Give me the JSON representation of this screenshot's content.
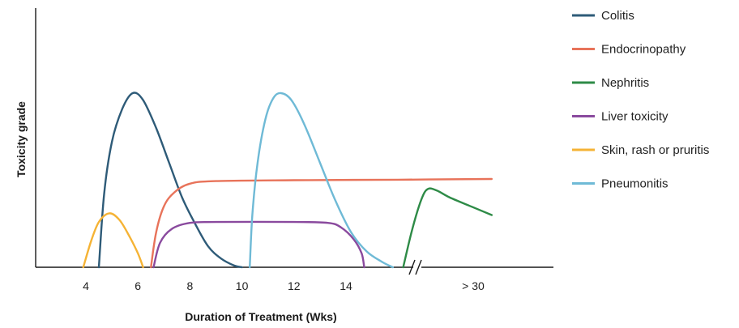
{
  "chart_data": {
    "type": "line",
    "title": "",
    "xlabel": "Duration of Treatment (Wks)",
    "ylabel": "Toxicity grade",
    "x_ticks": [
      4,
      6,
      8,
      10,
      12,
      14
    ],
    "x_break_label": "> 30",
    "xlim": [
      3,
      19.6
    ],
    "ylim": [
      0,
      1
    ],
    "legend_position": "right",
    "series": [
      {
        "name": "Colitis",
        "color": "#2e5b78",
        "points": [
          [
            4.5,
            0
          ],
          [
            4.7,
            0.42
          ],
          [
            5.0,
            0.72
          ],
          [
            5.4,
            0.91
          ],
          [
            5.8,
            1.0
          ],
          [
            6.2,
            0.96
          ],
          [
            6.7,
            0.8
          ],
          [
            7.2,
            0.6
          ],
          [
            7.7,
            0.4
          ],
          [
            8.2,
            0.25
          ],
          [
            8.7,
            0.12
          ],
          [
            9.2,
            0.05
          ],
          [
            9.7,
            0.01
          ],
          [
            10.0,
            0
          ]
        ]
      },
      {
        "name": "Endocrinopathy",
        "color": "#e8735a",
        "points": [
          [
            6.5,
            0
          ],
          [
            6.7,
            0.2
          ],
          [
            7.0,
            0.35
          ],
          [
            7.4,
            0.43
          ],
          [
            8.0,
            0.48
          ],
          [
            9.0,
            0.495
          ],
          [
            12.0,
            0.5
          ],
          [
            16.0,
            0.503
          ],
          [
            19.6,
            0.507
          ]
        ]
      },
      {
        "name": "Nephritis",
        "color": "#2e8b47",
        "points": [
          [
            16.2,
            0
          ],
          [
            16.55,
            0.22
          ],
          [
            16.9,
            0.39
          ],
          [
            17.15,
            0.45
          ],
          [
            17.5,
            0.44
          ],
          [
            18.0,
            0.4
          ],
          [
            18.8,
            0.35
          ],
          [
            19.6,
            0.3
          ]
        ]
      },
      {
        "name": "Liver toxicity",
        "color": "#8a4a9e",
        "points": [
          [
            6.6,
            0
          ],
          [
            6.85,
            0.14
          ],
          [
            7.3,
            0.22
          ],
          [
            8.0,
            0.255
          ],
          [
            9.0,
            0.26
          ],
          [
            12.0,
            0.26
          ],
          [
            13.3,
            0.255
          ],
          [
            13.8,
            0.23
          ],
          [
            14.3,
            0.16
          ],
          [
            14.6,
            0.08
          ],
          [
            14.7,
            0
          ]
        ]
      },
      {
        "name": "Skin, rash or pruritis",
        "color": "#f5b335",
        "points": [
          [
            3.9,
            0
          ],
          [
            4.2,
            0.15
          ],
          [
            4.5,
            0.26
          ],
          [
            4.9,
            0.31
          ],
          [
            5.3,
            0.27
          ],
          [
            5.7,
            0.17
          ],
          [
            6.0,
            0.08
          ],
          [
            6.2,
            0
          ]
        ]
      },
      {
        "name": "Pneumonitis",
        "color": "#6fbad6",
        "points": [
          [
            10.3,
            0
          ],
          [
            10.4,
            0.3
          ],
          [
            10.6,
            0.6
          ],
          [
            10.9,
            0.85
          ],
          [
            11.2,
            0.97
          ],
          [
            11.5,
            1.0
          ],
          [
            11.9,
            0.96
          ],
          [
            12.4,
            0.82
          ],
          [
            13.0,
            0.6
          ],
          [
            13.6,
            0.38
          ],
          [
            14.2,
            0.2
          ],
          [
            14.8,
            0.09
          ],
          [
            15.4,
            0.03
          ],
          [
            15.8,
            0
          ]
        ]
      }
    ]
  }
}
